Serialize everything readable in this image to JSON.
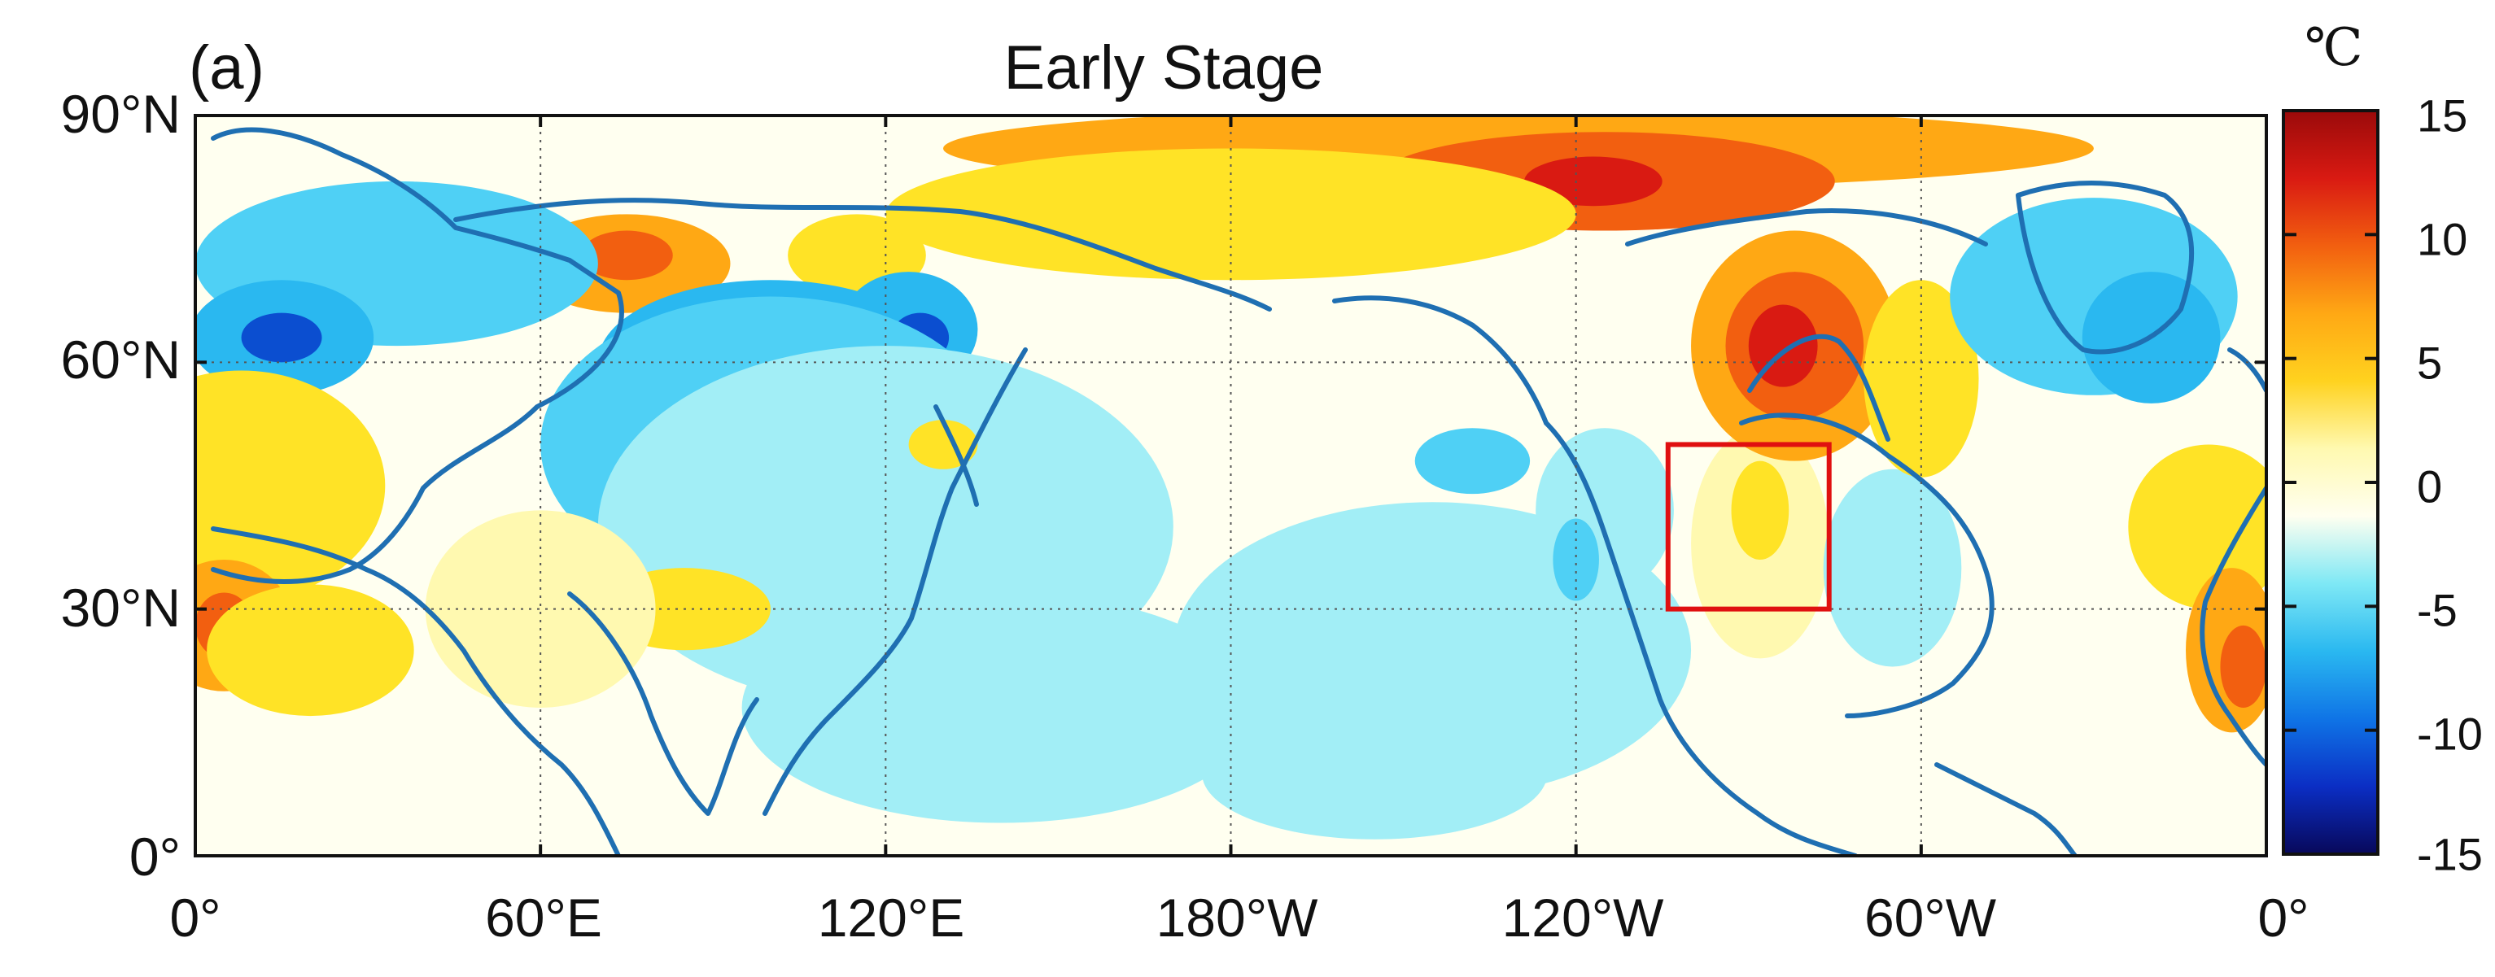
{
  "figure": {
    "panel_label": "(a)",
    "title": "Early Stage"
  },
  "map": {
    "projection": "equirectangular",
    "longitude_range": [
      0,
      360
    ],
    "latitude_range": [
      0,
      90
    ],
    "lat_ticks": [
      {
        "lat": 90,
        "label": "90°N"
      },
      {
        "lat": 60,
        "label": "60°N"
      },
      {
        "lat": 30,
        "label": "30°N"
      },
      {
        "lat": 0,
        "label": "0°"
      }
    ],
    "lon_ticks": [
      {
        "lon": 0,
        "label": "0°"
      },
      {
        "lon": 60,
        "label": "60°E"
      },
      {
        "lon": 120,
        "label": "120°E"
      },
      {
        "lon": 180,
        "label": "180°W"
      },
      {
        "lon": 240,
        "label": "120°W"
      },
      {
        "lon": 300,
        "label": "60°W"
      },
      {
        "lon": 360,
        "label": "0°"
      }
    ],
    "gridlines": "dotted",
    "coastline_color": "#1f6fb2",
    "highlight_box": {
      "lon_min": 256,
      "lon_max": 284,
      "lat_min": 30,
      "lat_max": 50,
      "color": "#e01010"
    },
    "anomaly_fields": [
      {
        "level": 3,
        "lon": 75,
        "lat": 72,
        "rx": 18,
        "ry": 6
      },
      {
        "level": 4,
        "lon": 75,
        "lat": 73,
        "rx": 8,
        "ry": 3
      },
      {
        "level": 2,
        "lon": 115,
        "lat": 73,
        "rx": 12,
        "ry": 5
      },
      {
        "level": -2,
        "lon": 35,
        "lat": 72,
        "rx": 35,
        "ry": 10
      },
      {
        "level": -3,
        "lon": 15,
        "lat": 63,
        "rx": 16,
        "ry": 7
      },
      {
        "level": -5,
        "lon": 15,
        "lat": 63,
        "rx": 7,
        "ry": 3
      },
      {
        "level": -3,
        "lon": 100,
        "lat": 60,
        "rx": 30,
        "ry": 10
      },
      {
        "level": -5,
        "lon": 100,
        "lat": 60,
        "rx": 16,
        "ry": 5
      },
      {
        "level": -3,
        "lon": 124,
        "lat": 64,
        "rx": 12,
        "ry": 7
      },
      {
        "level": -5,
        "lon": 126,
        "lat": 63,
        "rx": 5,
        "ry": 3
      },
      {
        "level": -2,
        "lon": 100,
        "lat": 50,
        "rx": 40,
        "ry": 18
      },
      {
        "level": -1,
        "lon": 120,
        "lat": 40,
        "rx": 50,
        "ry": 22
      },
      {
        "level": 2,
        "lon": 130,
        "lat": 50,
        "rx": 6,
        "ry": 3
      },
      {
        "level": 2,
        "lon": 8,
        "lat": 45,
        "rx": 25,
        "ry": 14
      },
      {
        "level": 3,
        "lon": 5,
        "lat": 28,
        "rx": 12,
        "ry": 8
      },
      {
        "level": 4,
        "lon": 5,
        "lat": 28,
        "rx": 5,
        "ry": 4
      },
      {
        "level": 2,
        "lon": 20,
        "lat": 25,
        "rx": 18,
        "ry": 8
      },
      {
        "level": 2,
        "lon": 85,
        "lat": 30,
        "rx": 15,
        "ry": 5
      },
      {
        "level": 1,
        "lon": 60,
        "lat": 30,
        "rx": 20,
        "ry": 12
      },
      {
        "level": -1,
        "lon": 140,
        "lat": 18,
        "rx": 45,
        "ry": 14
      },
      {
        "level": -1,
        "lon": 215,
        "lat": 25,
        "rx": 45,
        "ry": 18
      },
      {
        "level": -1,
        "lon": 245,
        "lat": 42,
        "rx": 12,
        "ry": 10
      },
      {
        "level": -2,
        "lon": 240,
        "lat": 36,
        "rx": 4,
        "ry": 5
      },
      {
        "level": -2,
        "lon": 222,
        "lat": 48,
        "rx": 10,
        "ry": 4
      },
      {
        "level": -1,
        "lon": 205,
        "lat": 10,
        "rx": 30,
        "ry": 8
      },
      {
        "level": 1,
        "lon": 272,
        "lat": 38,
        "rx": 12,
        "ry": 14
      },
      {
        "level": 2,
        "lon": 272,
        "lat": 42,
        "rx": 5,
        "ry": 6
      },
      {
        "level": -1,
        "lon": 295,
        "lat": 35,
        "rx": 12,
        "ry": 12
      },
      {
        "level": 3,
        "lon": 230,
        "lat": 86,
        "rx": 100,
        "ry": 5
      },
      {
        "level": 4,
        "lon": 245,
        "lat": 82,
        "rx": 40,
        "ry": 6
      },
      {
        "level": 5,
        "lon": 243,
        "lat": 82,
        "rx": 12,
        "ry": 3
      },
      {
        "level": 2,
        "lon": 180,
        "lat": 78,
        "rx": 60,
        "ry": 8
      },
      {
        "level": 3,
        "lon": 278,
        "lat": 62,
        "rx": 18,
        "ry": 14
      },
      {
        "level": 4,
        "lon": 278,
        "lat": 62,
        "rx": 12,
        "ry": 9
      },
      {
        "level": 5,
        "lon": 276,
        "lat": 62,
        "rx": 6,
        "ry": 5
      },
      {
        "level": 2,
        "lon": 300,
        "lat": 58,
        "rx": 10,
        "ry": 12
      },
      {
        "level": -2,
        "lon": 330,
        "lat": 68,
        "rx": 25,
        "ry": 12
      },
      {
        "level": -3,
        "lon": 340,
        "lat": 63,
        "rx": 12,
        "ry": 8
      },
      {
        "level": 2,
        "lon": 350,
        "lat": 40,
        "rx": 14,
        "ry": 10
      },
      {
        "level": 3,
        "lon": 354,
        "lat": 25,
        "rx": 8,
        "ry": 10
      },
      {
        "level": 4,
        "lon": 356,
        "lat": 23,
        "rx": 4,
        "ry": 5
      }
    ]
  },
  "colorbar": {
    "unit": "℃",
    "range": [
      -15,
      15
    ],
    "ticks": [
      {
        "value": 15,
        "label": "15"
      },
      {
        "value": 10,
        "label": "10"
      },
      {
        "value": 5,
        "label": "5"
      },
      {
        "value": 0,
        "label": "0"
      },
      {
        "value": -5,
        "label": "-5"
      },
      {
        "value": -10,
        "label": "-10"
      },
      {
        "value": -15,
        "label": "-15"
      }
    ],
    "colors": [
      "#08085a",
      "#0b2ec4",
      "#0f74e6",
      "#2ab8f0",
      "#7ee8f5",
      "#fffff0",
      "#fff9b0",
      "#ffd21f",
      "#ffa814",
      "#f25f10",
      "#d91a12",
      "#9a0a0a"
    ]
  },
  "level_colors": {
    "-5": "#0b4ed0",
    "-4": "#0f74e6",
    "-3": "#2ab8f0",
    "-2": "#4fd0f5",
    "-1": "#a2eef6",
    "0": "#fffff0",
    "1": "#fff9b0",
    "2": "#ffe326",
    "3": "#ffa814",
    "4": "#f25f10",
    "5": "#d91a12"
  }
}
